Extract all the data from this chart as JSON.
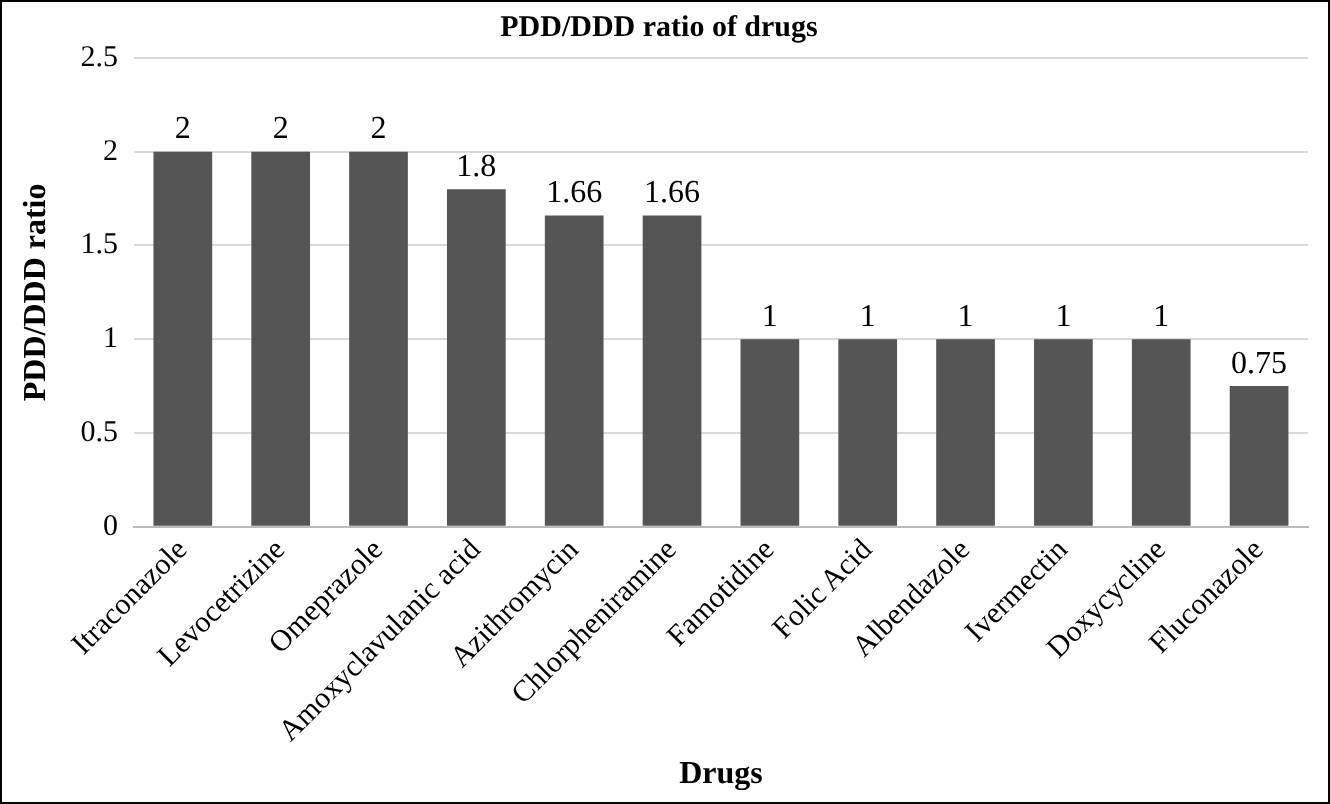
{
  "chart_data": {
    "type": "bar",
    "title": "PDD/DDD ratio of drugs",
    "xlabel": "Drugs",
    "ylabel": "PDD/DDD ratio",
    "categories": [
      "Itraconazole",
      "Levocetrizine",
      "Omeprazole",
      "Amoxyclavulanic acid",
      "Azithromycin",
      "Chlorpheniramine",
      "Famotidine",
      "Folic Acid",
      "Albendazole",
      "Ivermectin",
      "Doxycycline",
      "Fluconazole"
    ],
    "values": [
      2,
      2,
      2,
      1.8,
      1.66,
      1.66,
      1,
      1,
      1,
      1,
      1,
      0.75
    ],
    "color": "#555555",
    "ylim": [
      0,
      2.5
    ],
    "yticks": [
      0,
      0.5,
      1,
      1.5,
      2,
      2.5
    ],
    "grid": "y",
    "data_labels": true
  }
}
